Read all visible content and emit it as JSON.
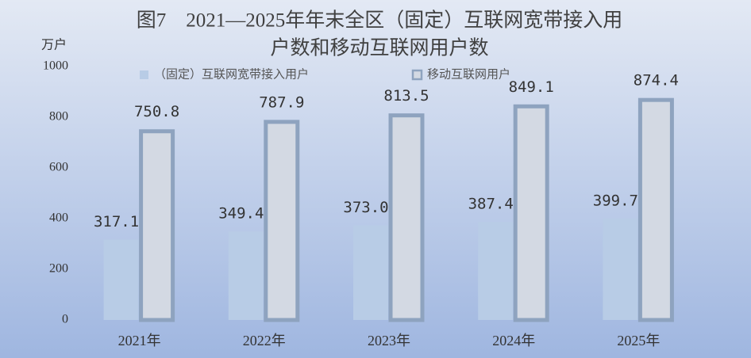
{
  "chart_data": {
    "type": "bar",
    "title": [
      "图7　2021—2025年年末全区（固定）互联网宽带接入用",
      "户数和移动互联网用户数"
    ],
    "y_label": "万户",
    "categories": [
      "2021年",
      "2022年",
      "2023年",
      "2024年",
      "2025年"
    ],
    "series": [
      {
        "name": "（固定）互联网宽带接入用户",
        "color": "#b8cce6",
        "values": [
          317.1,
          349.4,
          373.0,
          387.4,
          399.7
        ],
        "value_labels": [
          "317.1",
          "349.4",
          "373.0",
          "387.4",
          "399.7"
        ]
      },
      {
        "name": "移动互联网用户",
        "color": "#d3d9e3",
        "values": [
          750.8,
          787.9,
          813.5,
          849.1,
          874.4
        ],
        "value_labels": [
          "750.8",
          "787.9",
          "813.5",
          "849.1",
          "874.4"
        ]
      }
    ],
    "ylim": [
      0,
      1000
    ],
    "yticks": [
      0,
      200,
      400,
      600,
      800,
      1000
    ],
    "grid": false
  }
}
